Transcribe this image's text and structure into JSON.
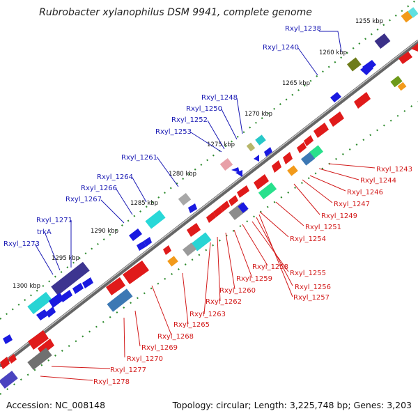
{
  "title": "Rubrobacter xylanophilus DSM 9941, complete genome",
  "footer": {
    "accession": "Accession: NC_008148",
    "summary": "Topology: circular; Length: 3,225,748 bp; Genes: 3,203"
  },
  "kbp_labels": [
    "1255 kbp",
    "1260 kbp",
    "1265 kbp",
    "1270 kbp",
    "1275 kbp",
    "1280 kbp",
    "1285 kbp",
    "1290 kbp",
    "1295 kbp",
    "1300 kbp"
  ],
  "forward_labels": [
    "Rxyl_1238",
    "Rxyl_1240",
    "Rxyl_1248",
    "Rxyl_1250",
    "Rxyl_1252",
    "Rxyl_1253",
    "Rxyl_1261",
    "Rxyl_1264",
    "Rxyl_1266",
    "Rxyl_1267",
    "Rxyl_1271",
    "trkA",
    "Rxyl_1273"
  ],
  "reverse_labels": [
    "Rxyl_1243",
    "Rxyl_1244",
    "Rxyl_1246",
    "Rxyl_1247",
    "Rxyl_1249",
    "Rxyl_1251",
    "Rxyl_1254",
    "Rxyl_1258",
    "Rxyl_1255",
    "Rxyl_1259",
    "Rxyl_1256",
    "Rxyl_1257",
    "Rxyl_1260",
    "Rxyl_1262",
    "Rxyl_1263",
    "Rxyl_1265",
    "Rxyl_1268",
    "Rxyl_1269",
    "Rxyl_1270",
    "Rxyl_1277",
    "Rxyl_1278"
  ],
  "colors": {
    "forward_label": "#1a1ab4",
    "reverse_label": "#d21a1a",
    "backbone": "#8a8a8a",
    "tick_dots": "#2e8b2e"
  }
}
